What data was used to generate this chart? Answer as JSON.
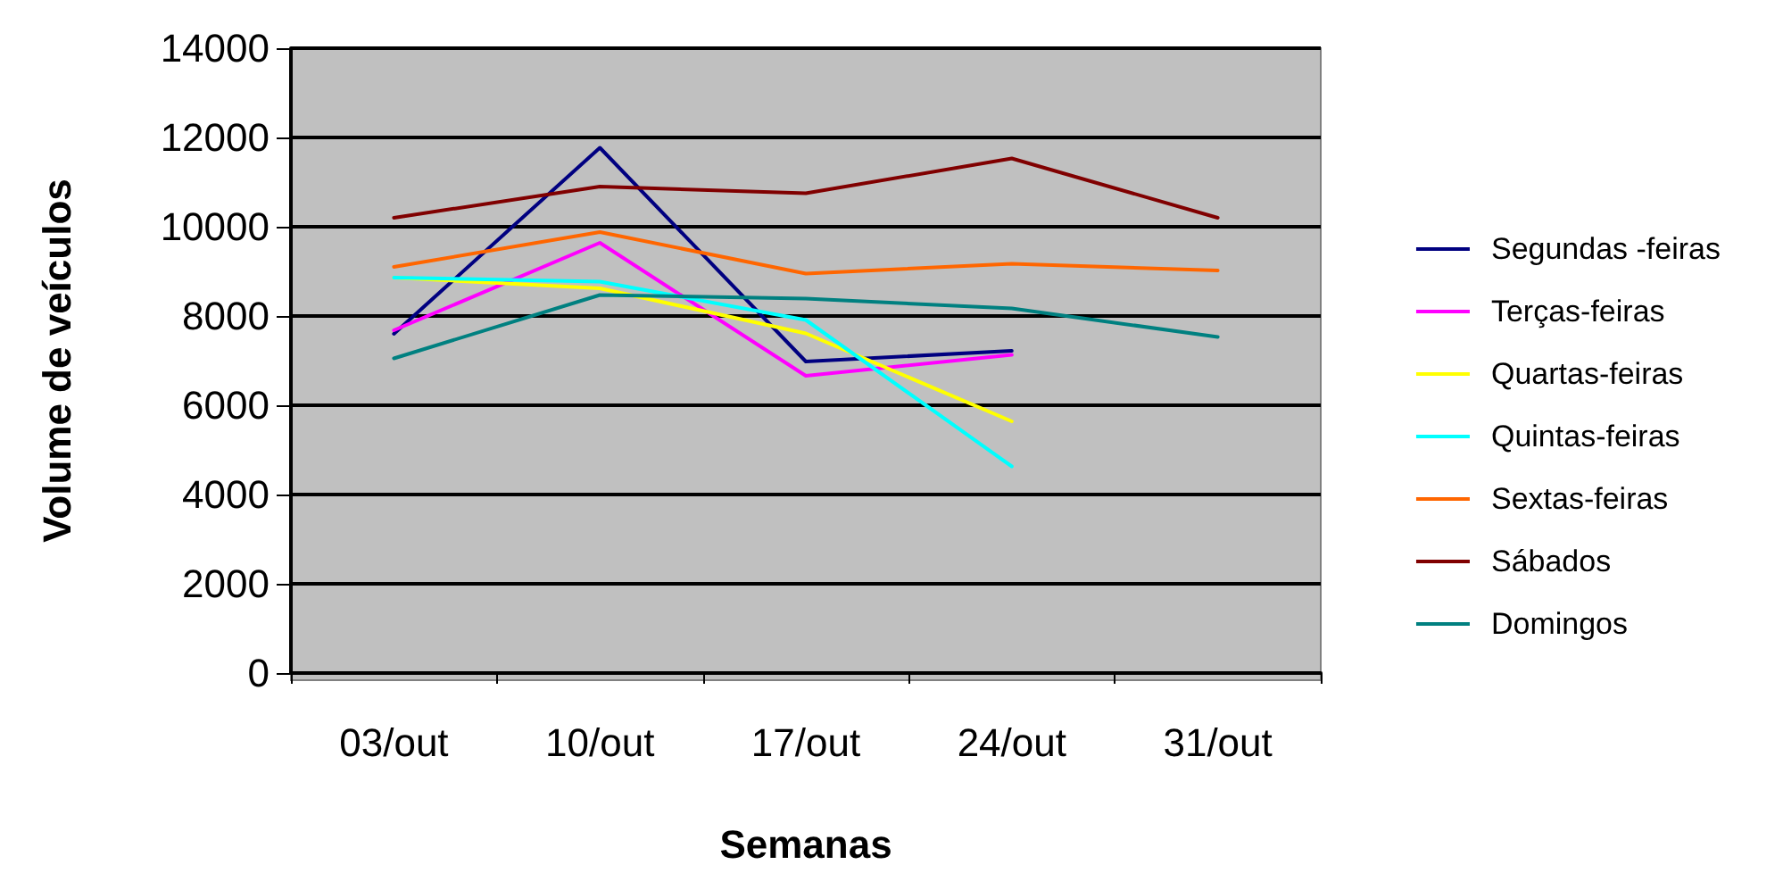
{
  "chart_data": {
    "type": "line",
    "xlabel": "Semanas",
    "ylabel": "Volume de veículos",
    "categories": [
      "03/out",
      "10/out",
      "17/out",
      "24/out",
      "31/out"
    ],
    "series": [
      {
        "name": "Segundas -feiras",
        "color": "#000080",
        "values": [
          7600,
          11770,
          6980,
          7220,
          null
        ]
      },
      {
        "name": "Terças-feiras",
        "color": "#ff00ff",
        "values": [
          7680,
          9640,
          6660,
          7130,
          null
        ]
      },
      {
        "name": "Quartas-feiras",
        "color": "#ffff00",
        "values": [
          8860,
          8620,
          7610,
          5640,
          null
        ]
      },
      {
        "name": "Quintas-feiras",
        "color": "#00ffff",
        "values": [
          8860,
          8770,
          7910,
          4630,
          null
        ]
      },
      {
        "name": "Sextas-feiras",
        "color": "#ff6600",
        "values": [
          9100,
          9880,
          8950,
          9170,
          9020
        ]
      },
      {
        "name": "Sábados",
        "color": "#800000",
        "values": [
          10200,
          10900,
          10750,
          11530,
          10200
        ]
      },
      {
        "name": "Domingos",
        "color": "#008080",
        "values": [
          7050,
          8470,
          8390,
          8170,
          7530
        ]
      }
    ],
    "ylim": [
      0,
      14000
    ],
    "yticks": [
      0,
      2000,
      4000,
      6000,
      8000,
      10000,
      12000,
      14000
    ],
    "grid": "y",
    "legend": "right",
    "marker": "none",
    "line_style": "solid"
  }
}
